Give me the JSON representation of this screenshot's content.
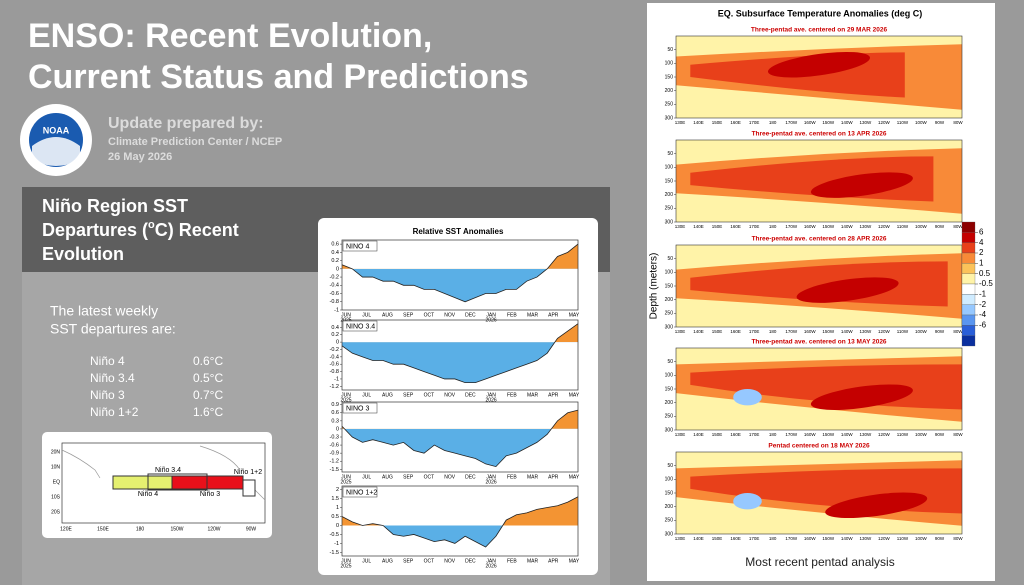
{
  "header": {
    "title_lines": [
      "ENSO: Recent Evolution,",
      "Current Status and Predictions"
    ],
    "logo": "NOAA",
    "update_heading": "Update prepared by:",
    "update_org": "Climate Prediction Center / NCEP",
    "update_date": "26 May 2026"
  },
  "section": {
    "line1": "Niño Region SST",
    "line2_pre": "Departures (",
    "line2_sup": "o",
    "line2_post": "C) Recent",
    "line3": "Evolution"
  },
  "weekly": {
    "intro_lines": [
      "The latest weekly",
      "SST departures are:"
    ],
    "rows": [
      [
        "Niño 4",
        "0.6°C"
      ],
      [
        "Niño 3.4",
        "0.5°C"
      ],
      [
        "Niño 3",
        "0.7°C"
      ],
      [
        "Niño 1+2",
        "1.6°C"
      ]
    ]
  },
  "map": {
    "region_labels": [
      "Niño 3.4",
      "Niño 4",
      "Niño 3",
      "Niño 1+2"
    ],
    "lat_labels": [
      "20N",
      "10N",
      "EQ",
      "10S",
      "20S"
    ],
    "lon_labels": [
      "120E",
      "150E",
      "180",
      "150W",
      "120W",
      "90W"
    ]
  },
  "sst_chart": {
    "title": "Relative SST Anomalies",
    "months": [
      "JUN",
      "JUL",
      "AUG",
      "SEP",
      "OCT",
      "NOV",
      "DEC",
      "JAN",
      "FEB",
      "MAR",
      "APR",
      "MAY"
    ],
    "years": [
      "2025",
      "2026"
    ],
    "panels": [
      {
        "name": "NINO 4",
        "ylim": [
          -1,
          0.7
        ],
        "yticks": [
          0.6,
          0.4,
          0.2,
          0,
          -0.2,
          -0.4,
          -0.6,
          -0.8,
          -1
        ],
        "values": [
          0.1,
          0.0,
          -0.2,
          -0.2,
          -0.3,
          -0.3,
          -0.4,
          -0.4,
          -0.5,
          -0.5,
          -0.6,
          -0.7,
          -0.8,
          -0.7,
          -0.6,
          -0.6,
          -0.5,
          -0.5,
          -0.3,
          -0.2,
          0.0,
          0.3,
          0.4,
          0.6
        ]
      },
      {
        "name": "NINO 3.4",
        "ylim": [
          -1.3,
          0.6
        ],
        "yticks": [
          0.4,
          0.2,
          0,
          -0.2,
          -0.4,
          -0.6,
          -0.8,
          -1,
          -1.2
        ],
        "values": [
          -0.1,
          -0.3,
          -0.4,
          -0.5,
          -0.5,
          -0.6,
          -0.6,
          -0.7,
          -0.8,
          -0.9,
          -1.0,
          -1.0,
          -1.1,
          -1.1,
          -1.0,
          -0.9,
          -0.8,
          -0.7,
          -0.6,
          -0.5,
          -0.3,
          0.1,
          0.3,
          0.5
        ]
      },
      {
        "name": "NINO 3",
        "ylim": [
          -1.6,
          1.0
        ],
        "yticks": [
          0.9,
          0.6,
          0.3,
          0,
          -0.3,
          -0.6,
          -0.9,
          -1.2,
          -1.5
        ],
        "values": [
          0.1,
          -0.3,
          -0.5,
          -0.4,
          -0.5,
          -0.6,
          -0.5,
          -0.8,
          -0.9,
          -0.6,
          -0.8,
          -0.9,
          -1.0,
          -1.1,
          -1.3,
          -1.4,
          -1.0,
          -0.9,
          -0.7,
          -0.5,
          -0.2,
          0.3,
          0.6,
          0.7
        ]
      },
      {
        "name": "NINO 1+2",
        "ylim": [
          -1.7,
          2.2
        ],
        "yticks": [
          2,
          1.5,
          1,
          0.5,
          0,
          -0.5,
          -1,
          -1.5
        ],
        "values": [
          0.5,
          0.2,
          0.0,
          0.1,
          0.0,
          -0.5,
          -0.6,
          -0.5,
          -0.7,
          -0.9,
          -0.8,
          -1.0,
          -0.6,
          -0.9,
          -1.2,
          -0.6,
          0.3,
          0.6,
          0.7,
          0.9,
          1.0,
          1.1,
          1.3,
          1.6
        ]
      }
    ]
  },
  "subsurface": {
    "title": "EQ. Subsurface Temperature Anomalies (deg C)",
    "y_label": "Depth (meters)",
    "panel_titles": [
      "Three-pentad ave. centered on 29 MAR 2026",
      "Three-pentad ave. centered on 13 APR 2026",
      "Three-pentad ave. centered on 28 APR 2026",
      "Three-pentad ave. centered on 13 MAY 2026",
      "Pentad centered on 18 MAY 2026"
    ],
    "depth_ticks": [
      50,
      100,
      150,
      200,
      250,
      300
    ],
    "lon_labels": [
      "130E",
      "140E",
      "150E",
      "160E",
      "170E",
      "180",
      "170W",
      "160W",
      "150W",
      "140W",
      "130W",
      "120W",
      "110W",
      "100W",
      "90W",
      "80W"
    ],
    "colorbar": {
      "levels": [
        6,
        4,
        2,
        1,
        0.5,
        -0.5,
        -1,
        -2,
        -4,
        -6
      ],
      "colors": [
        "#8c0000",
        "#c40000",
        "#e8401a",
        "#f88a38",
        "#fbc25a",
        "#fff3a8",
        "#ffffff",
        "#d0ecff",
        "#96c8ff",
        "#5a96f0",
        "#2a5fd8",
        "#0a2f9e"
      ]
    },
    "footer": "Most recent pentad analysis"
  }
}
